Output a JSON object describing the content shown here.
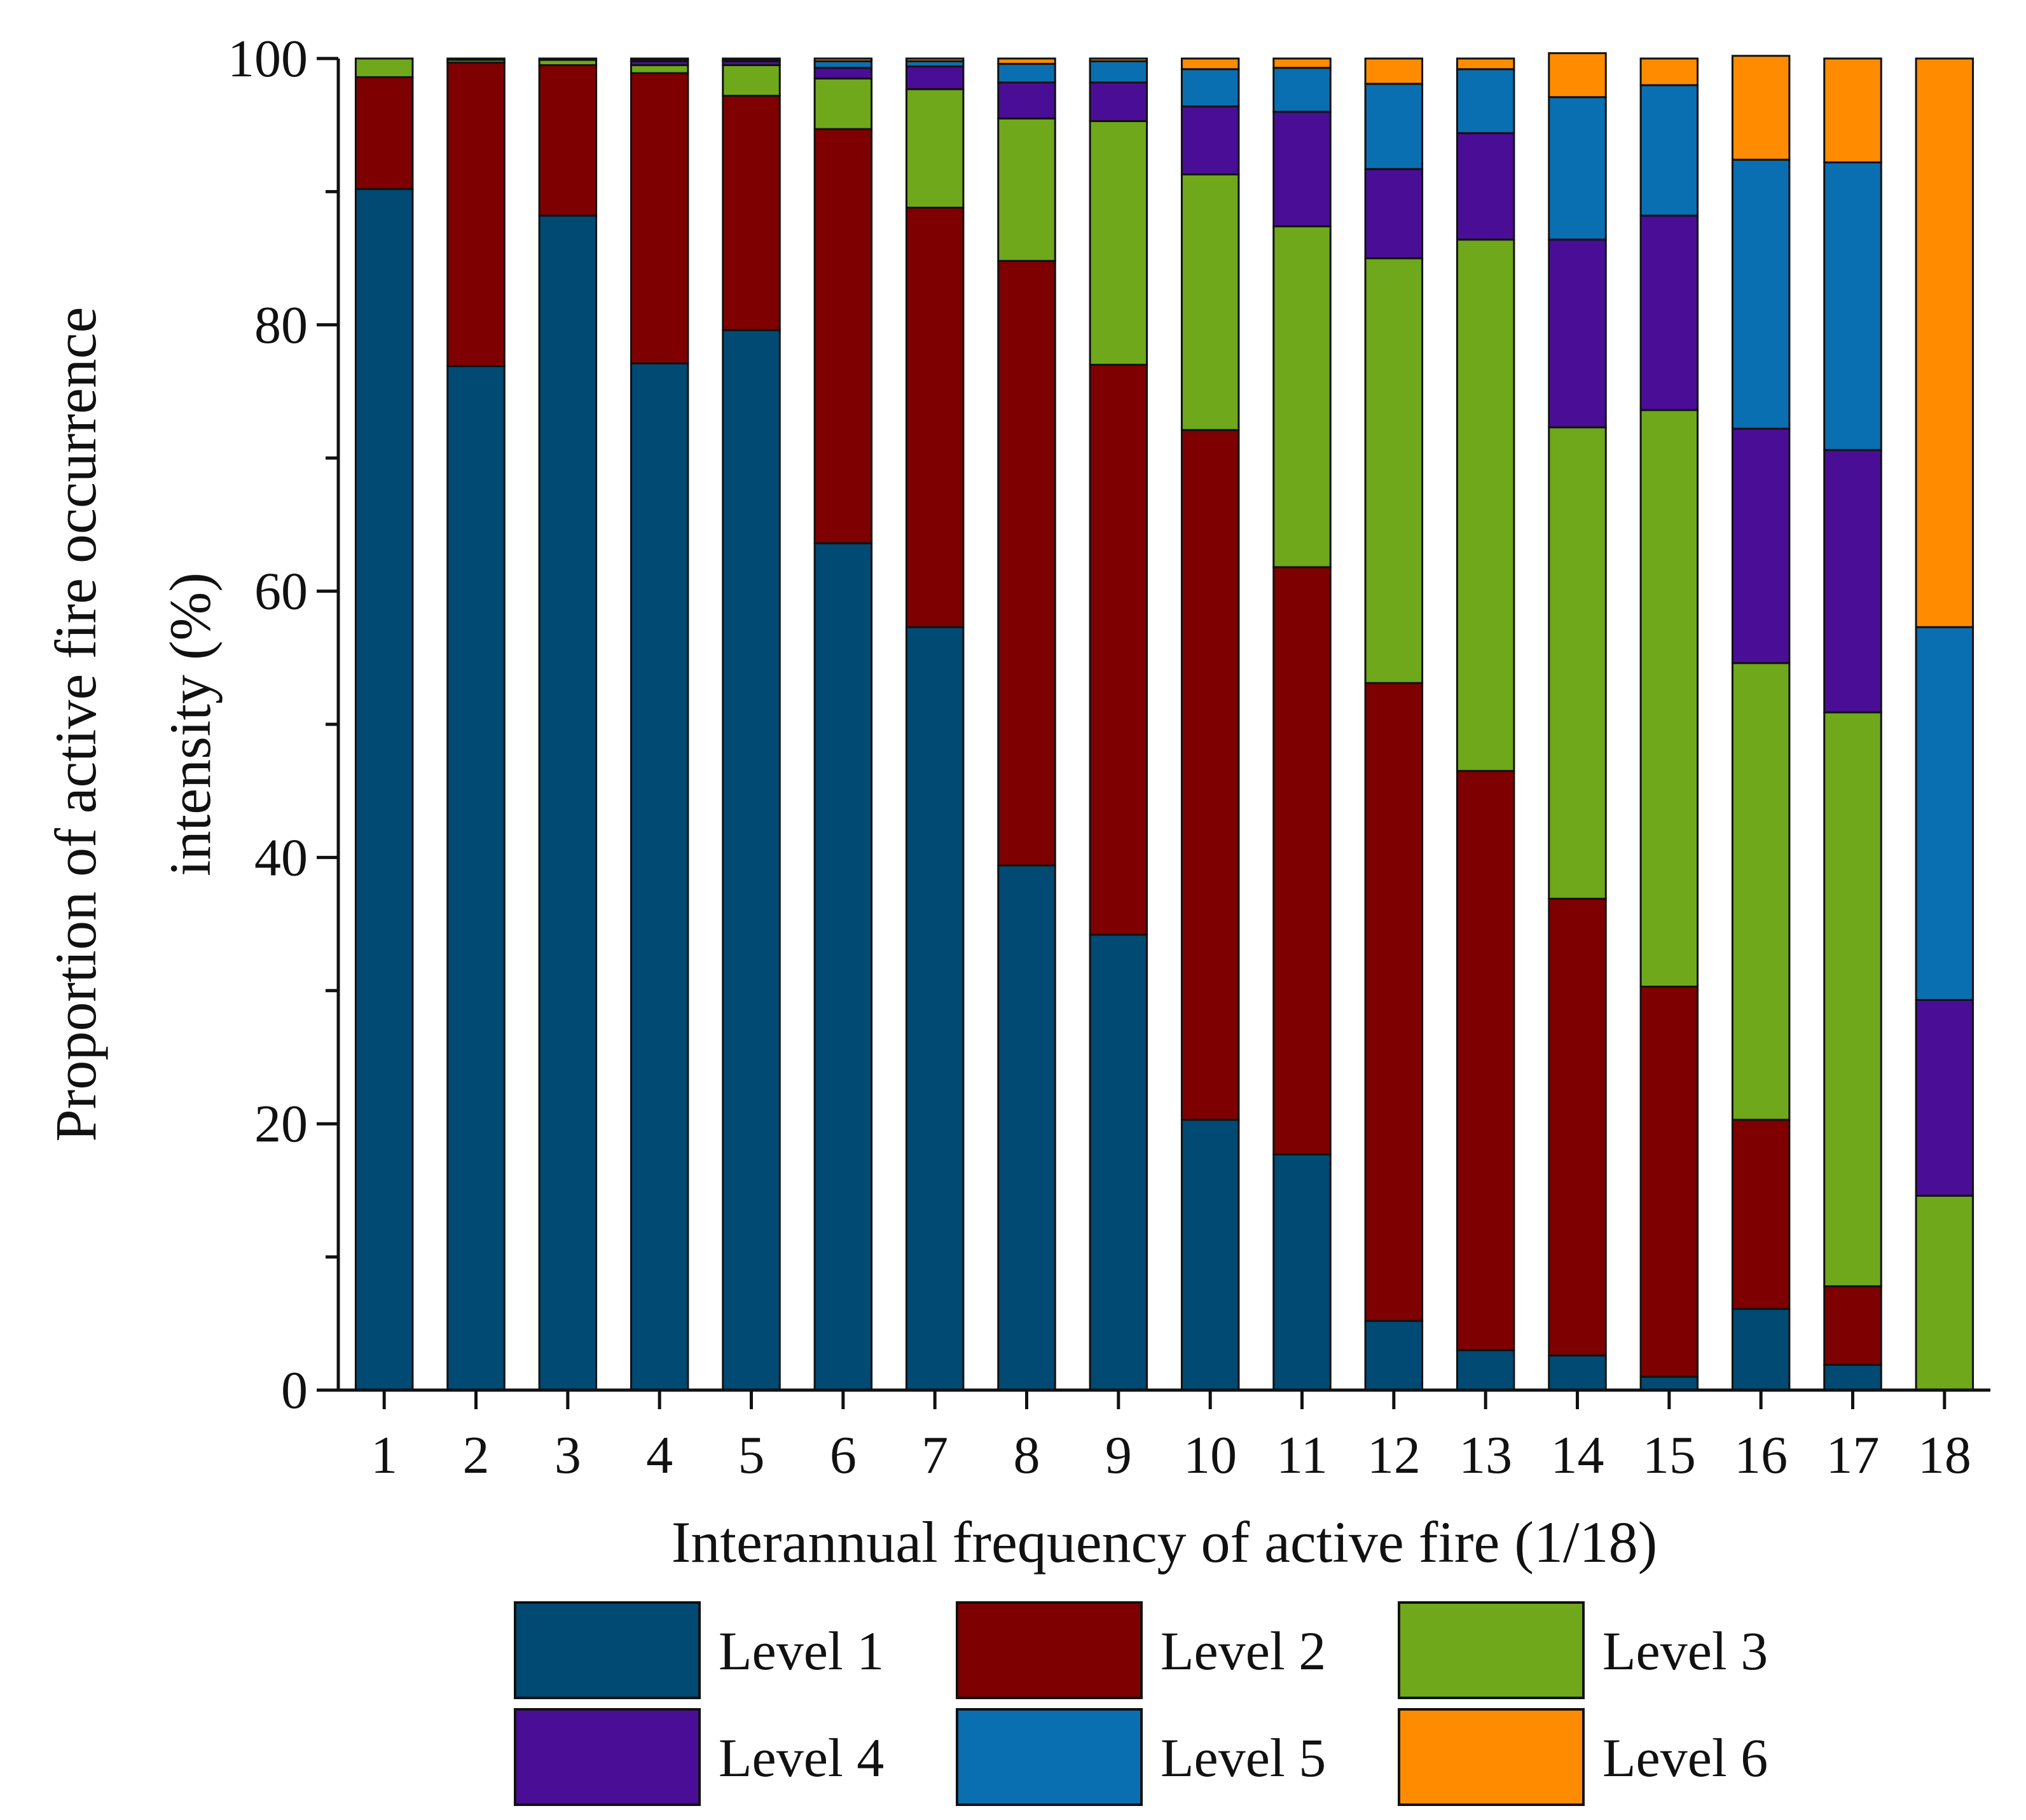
{
  "chart_data": {
    "type": "bar",
    "stacked": true,
    "xlabel": "Interannual frequency of active fire (1/18)",
    "ylabel": [
      "Proportion of active fire occurrence",
      "intensity (%)"
    ],
    "ylim": [
      0,
      100
    ],
    "yticks": [
      0,
      20,
      40,
      60,
      80,
      100
    ],
    "categories": [
      "1",
      "2",
      "3",
      "4",
      "5",
      "6",
      "7",
      "8",
      "9",
      "10",
      "11",
      "12",
      "13",
      "14",
      "15",
      "16",
      "17",
      "18"
    ],
    "grid": false,
    "legend_position": "bottom",
    "series": [
      {
        "name": "Level 1",
        "color": "#004a73",
        "values": [
          90.2,
          76.9,
          88.2,
          77.1,
          79.6,
          63.6,
          57.3,
          39.4,
          34.2,
          20.3,
          17.7,
          5.2,
          3.0,
          2.6,
          1.0,
          6.1,
          1.9,
          0.0
        ]
      },
      {
        "name": "Level 2",
        "color": "#7f0000",
        "values": [
          8.4,
          22.8,
          11.3,
          21.8,
          17.6,
          31.1,
          31.5,
          45.4,
          42.8,
          51.8,
          44.1,
          47.9,
          43.5,
          34.3,
          29.3,
          14.2,
          5.9,
          0.0
        ]
      },
      {
        "name": "Level 3",
        "color": "#6fa81b",
        "values": [
          1.4,
          0.2,
          0.4,
          0.6,
          2.3,
          3.8,
          8.9,
          10.7,
          18.3,
          19.2,
          25.6,
          31.9,
          39.9,
          35.4,
          43.3,
          34.3,
          43.1,
          14.6
        ]
      },
      {
        "name": "Level 4",
        "color": "#4a0e96",
        "values": [
          0.0,
          0.1,
          0.1,
          0.3,
          0.3,
          0.8,
          1.7,
          2.7,
          2.9,
          5.1,
          8.6,
          6.7,
          8.0,
          14.1,
          14.6,
          17.6,
          19.7,
          14.7
        ]
      },
      {
        "name": "Level 5",
        "color": "#0a6fb0",
        "values": [
          0.0,
          0.0,
          0.0,
          0.1,
          0.1,
          0.5,
          0.4,
          1.4,
          1.6,
          2.8,
          3.3,
          6.4,
          4.8,
          10.7,
          9.8,
          20.2,
          21.6,
          28.0
        ]
      },
      {
        "name": "Level 6",
        "color": "#ff8c00",
        "values": [
          0.0,
          0.0,
          0.0,
          0.1,
          0.1,
          0.2,
          0.2,
          0.4,
          0.2,
          0.8,
          0.7,
          1.9,
          0.8,
          3.3,
          2.0,
          7.8,
          7.8,
          42.7
        ]
      }
    ]
  }
}
